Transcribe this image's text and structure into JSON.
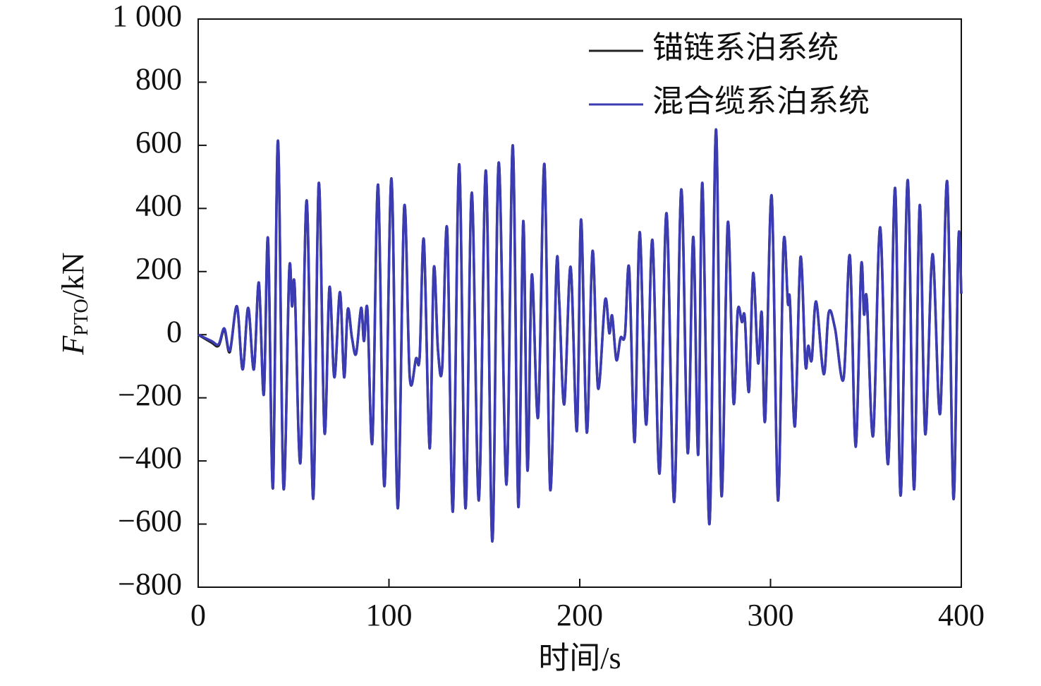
{
  "chart_data": {
    "type": "line",
    "x_label": "时间/s",
    "y_label": {
      "symbol": "F",
      "subscript": "PTO",
      "unit": "/kN"
    },
    "xlim": [
      0,
      400
    ],
    "xticks": [
      0,
      100,
      200,
      300,
      400
    ],
    "ylim": [
      -800,
      1000
    ],
    "yticks": [
      {
        "value": -800,
        "label": "−800"
      },
      {
        "value": -600,
        "label": "−600"
      },
      {
        "value": -400,
        "label": "−400"
      },
      {
        "value": -200,
        "label": "−200"
      },
      0,
      200,
      400,
      600,
      800,
      {
        "value": 1000,
        "label": "1 000"
      }
    ],
    "legend": "upper right",
    "x": [
      0,
      7.0,
      10.7,
      13.7,
      16.6,
      20.3,
      23.3,
      26.2,
      29.2,
      31.8,
      34.4,
      36.6,
      39.2,
      41.8,
      44.7,
      47.7,
      49.2,
      50.6,
      53.6,
      56.9,
      60.3,
      63.2,
      66.2,
      68.8,
      71.4,
      74.3,
      76.5,
      78.4,
      80.6,
      82.8,
      85.4,
      86.9,
      88.7,
      91.3,
      94.3,
      97.6,
      101.3,
      104.6,
      108.0,
      110.9,
      114.2,
      116.1,
      118.3,
      121.3,
      123.5,
      125.7,
      127.9,
      130.5,
      133.5,
      136.8,
      140.1,
      143.4,
      147.1,
      150.8,
      154.2,
      157.5,
      161.6,
      164.9,
      167.8,
      170.4,
      172.6,
      174.9,
      178.2,
      181.5,
      184.5,
      187.8,
      189.3,
      191.9,
      195.2,
      198.5,
      200.7,
      203.7,
      206.7,
      209.6,
      213.3,
      215.5,
      217.0,
      219.2,
      221.4,
      223.7,
      225.9,
      228.8,
      231.4,
      234.8,
      238.1,
      241.8,
      245.5,
      249.5,
      253.2,
      256.6,
      259.5,
      262.1,
      264.3,
      268.0,
      271.4,
      274.3,
      277.6,
      280.6,
      282.8,
      285.0,
      286.5,
      288.7,
      290.9,
      293.5,
      295.4,
      297.2,
      300.6,
      303.9,
      306.8,
      309.1,
      310.2,
      312.8,
      315.7,
      318.3,
      319.8,
      321.6,
      323.9,
      327.9,
      330.5,
      333.8,
      338.3,
      341.6,
      344.6,
      347.5,
      349.0,
      350.5,
      353.8,
      357.5,
      361.6,
      365.3,
      368.2,
      371.9,
      375.2,
      378.2,
      381.1,
      384.9,
      388.9,
      392.6,
      395.9,
      398.5,
      400
    ],
    "series": [
      {
        "name": "锚链系泊系统",
        "color": "#222222",
        "values": [
          0,
          -25,
          -35,
          15,
          -55,
          90,
          -110,
          85,
          -110,
          165,
          -190,
          305,
          -485,
          615,
          -485,
          200,
          90,
          150,
          -405,
          425,
          -520,
          480,
          -310,
          150,
          -135,
          135,
          -135,
          80,
          -10,
          -60,
          85,
          -20,
          80,
          -340,
          475,
          -480,
          495,
          -550,
          405,
          -135,
          -75,
          -70,
          300,
          -360,
          210,
          -50,
          -105,
          335,
          -560,
          540,
          -550,
          450,
          -525,
          520,
          -655,
          545,
          -475,
          600,
          -545,
          360,
          -430,
          190,
          -260,
          540,
          -490,
          215,
          100,
          -220,
          215,
          -305,
          365,
          -310,
          265,
          -170,
          110,
          5,
          60,
          -80,
          -10,
          0,
          210,
          -340,
          325,
          -285,
          300,
          -440,
          385,
          -530,
          460,
          -375,
          310,
          -380,
          480,
          -600,
          650,
          -510,
          355,
          -215,
          75,
          40,
          55,
          -180,
          195,
          -90,
          70,
          -270,
          440,
          -525,
          285,
          100,
          105,
          -290,
          245,
          -95,
          -35,
          -80,
          105,
          -125,
          70,
          20,
          -140,
          250,
          -355,
          215,
          65,
          110,
          -320,
          340,
          -410,
          465,
          -510,
          490,
          -490,
          410,
          -315,
          255,
          -250,
          485,
          -520,
          300,
          130
        ]
      },
      {
        "name": "混合缆系泊系统",
        "color": "#3b3bb3",
        "values": [
          0,
          -20,
          -30,
          20,
          -50,
          90,
          -110,
          85,
          -110,
          165,
          -190,
          305,
          -485,
          615,
          -485,
          200,
          90,
          150,
          -405,
          425,
          -520,
          480,
          -310,
          150,
          -135,
          135,
          -135,
          80,
          -10,
          -60,
          85,
          -20,
          80,
          -340,
          475,
          -480,
          495,
          -550,
          405,
          -135,
          -75,
          -70,
          300,
          -360,
          210,
          -50,
          -105,
          335,
          -560,
          540,
          -550,
          450,
          -525,
          520,
          -655,
          545,
          -475,
          600,
          -545,
          360,
          -430,
          190,
          -260,
          540,
          -490,
          215,
          100,
          -220,
          215,
          -305,
          365,
          -310,
          265,
          -170,
          110,
          5,
          60,
          -80,
          -10,
          0,
          210,
          -340,
          325,
          -285,
          300,
          -440,
          385,
          -530,
          460,
          -375,
          310,
          -380,
          480,
          -600,
          650,
          -510,
          355,
          -215,
          75,
          40,
          55,
          -180,
          195,
          -90,
          70,
          -270,
          440,
          -525,
          285,
          100,
          105,
          -290,
          245,
          -95,
          -35,
          -80,
          105,
          -125,
          70,
          20,
          -140,
          250,
          -355,
          215,
          65,
          110,
          -320,
          340,
          -410,
          465,
          -510,
          490,
          -490,
          410,
          -315,
          255,
          -250,
          485,
          -520,
          300,
          130
        ]
      }
    ]
  }
}
